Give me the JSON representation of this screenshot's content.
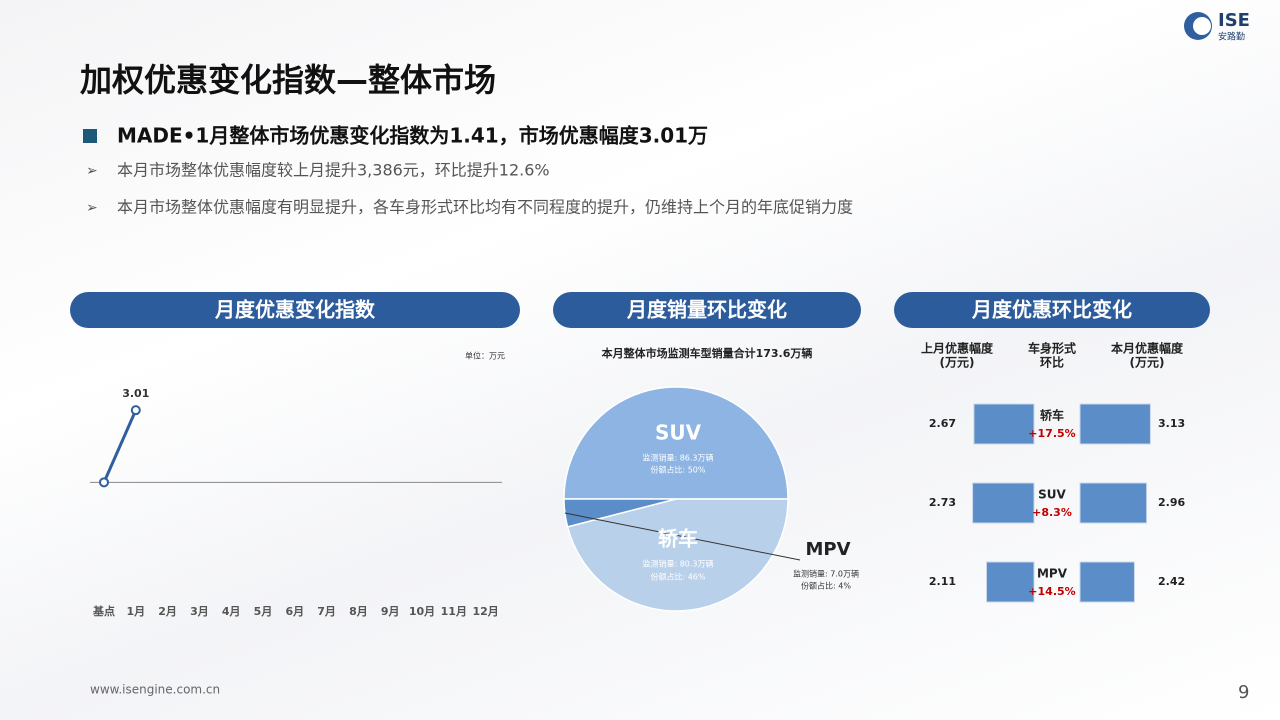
{
  "header": {
    "title": "加权优惠变化指数—整体市场",
    "logo": "ISE",
    "logo_sub": "安路勤"
  },
  "headline": "MADE•1月整体市场优惠变化指数为1.41，市场优惠幅度3.01万",
  "bullets": [
    "本月市场整体优惠幅度较上月提升3,386元，环比提升12.6%",
    "本月市场整体优惠幅度有明显提升，各车身形式环比均有不同程度的提升，仍维持上个月的年底促销力度"
  ],
  "footer": {
    "url": "www.isengine.com.cn",
    "page": "9"
  },
  "chart_data": [
    {
      "type": "line",
      "title": "月度优惠变化指数",
      "unit": "单位：万元",
      "categories": [
        "基点",
        "1月",
        "2月",
        "3月",
        "4月",
        "5月",
        "6月",
        "7月",
        "8月",
        "9月",
        "10月",
        "11月",
        "12月"
      ],
      "values": [
        2.13,
        3.01,
        null,
        null,
        null,
        null,
        null,
        null,
        null,
        null,
        null,
        null,
        null
      ],
      "value_labels": [
        null,
        "3.01",
        null,
        null,
        null,
        null,
        null,
        null,
        null,
        null,
        null,
        null,
        null
      ],
      "color": "#2f5f9e",
      "ylim": [
        1.5,
        3.5
      ]
    },
    {
      "type": "pie",
      "title": "月度销量环比变化",
      "subtitle": "本月整体市场监测车型销量合计173.6万辆",
      "categories": [
        "SUV",
        "轿车",
        "MPV"
      ],
      "values": [
        50,
        46,
        4
      ],
      "value_labels": [
        "份额占比: 50%",
        "份额占比: 46%",
        "份额占比: 4%"
      ],
      "volumes": [
        86.3,
        80.3,
        7.0
      ],
      "volume_labels": [
        "监测销量: 86.3万辆",
        "监测销量: 80.3万辆",
        "监测销量: 7.0万辆"
      ],
      "colors": [
        "#8eb4e3",
        "#b9d0ea",
        "#5b8ec8"
      ]
    },
    {
      "type": "bar",
      "title": "月度优惠环比变化",
      "header_lines": [
        [
          "上月优惠幅度",
          "(万元)"
        ],
        [
          "车身形式",
          "环比"
        ],
        [
          "本月优惠幅度",
          "(万元)"
        ]
      ],
      "categories": [
        "轿车",
        "SUV",
        "MPV"
      ],
      "series": [
        {
          "color": "#5b8ec8",
          "values": [
            2.67,
            2.73,
            2.11
          ]
        },
        {
          "color": "#5b8ec8",
          "values": [
            3.13,
            2.96,
            2.42
          ]
        }
      ],
      "change": [
        17.5,
        8.3,
        14.5
      ],
      "change_labels": [
        "+17.5%",
        "+8.3%",
        "+14.5%"
      ],
      "xlim": [
        0,
        3.2
      ]
    }
  ]
}
